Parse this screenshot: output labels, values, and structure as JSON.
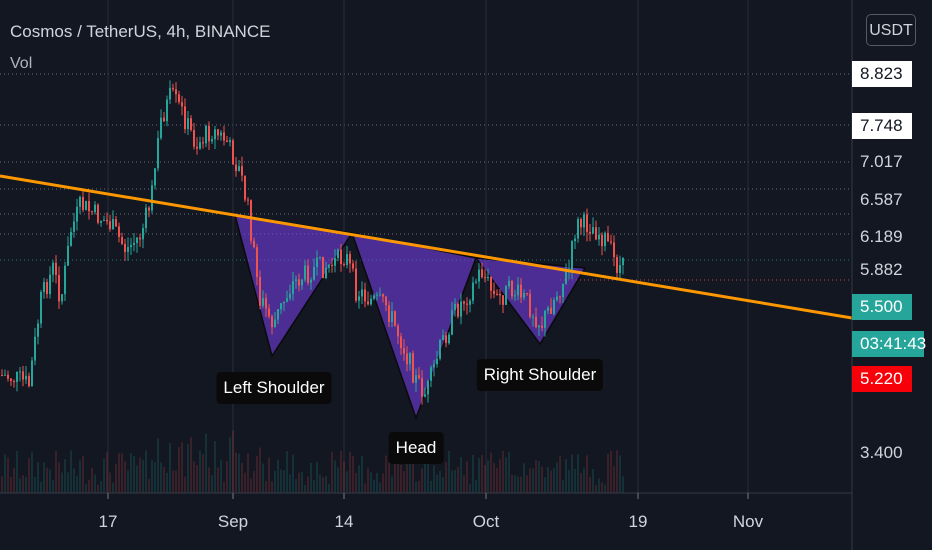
{
  "header": {
    "title": "Cosmos / TetherUS, 4h, BINANCE",
    "vol_label": "Vol",
    "currency_button": "USDT"
  },
  "colors": {
    "background": "#131722",
    "candle_up": "#26a69a",
    "candle_down": "#ef5350",
    "trendline": "#ff9800",
    "pattern_fill": "#7b3ff2",
    "current_price_green": "#26a69a",
    "price_red": "#f7000a"
  },
  "chart_data": {
    "type": "candlestick",
    "title": "Cosmos / TetherUS, 4h, BINANCE",
    "x_tick_labels": [
      "17",
      "Sep",
      "14",
      "Oct",
      "19",
      "Nov"
    ],
    "price_levels": [
      {
        "label": "8.823",
        "style": "boxed"
      },
      {
        "label": "7.748",
        "style": "boxed"
      },
      {
        "label": "7.017",
        "style": "plain"
      },
      {
        "label": "6.587",
        "style": "plain"
      },
      {
        "label": "6.189",
        "style": "plain"
      },
      {
        "label": "5.882",
        "style": "plain"
      },
      {
        "label": "5.500",
        "style": "green"
      },
      {
        "label": "03:41:43",
        "style": "timer"
      },
      {
        "label": "5.220",
        "style": "red"
      },
      {
        "label": "3.400",
        "style": "plain"
      }
    ],
    "current_price": 5.5,
    "annotations": [
      "Left Shoulder",
      "Head",
      "Right Shoulder"
    ],
    "pattern": "inverse head and shoulders with descending neckline"
  }
}
